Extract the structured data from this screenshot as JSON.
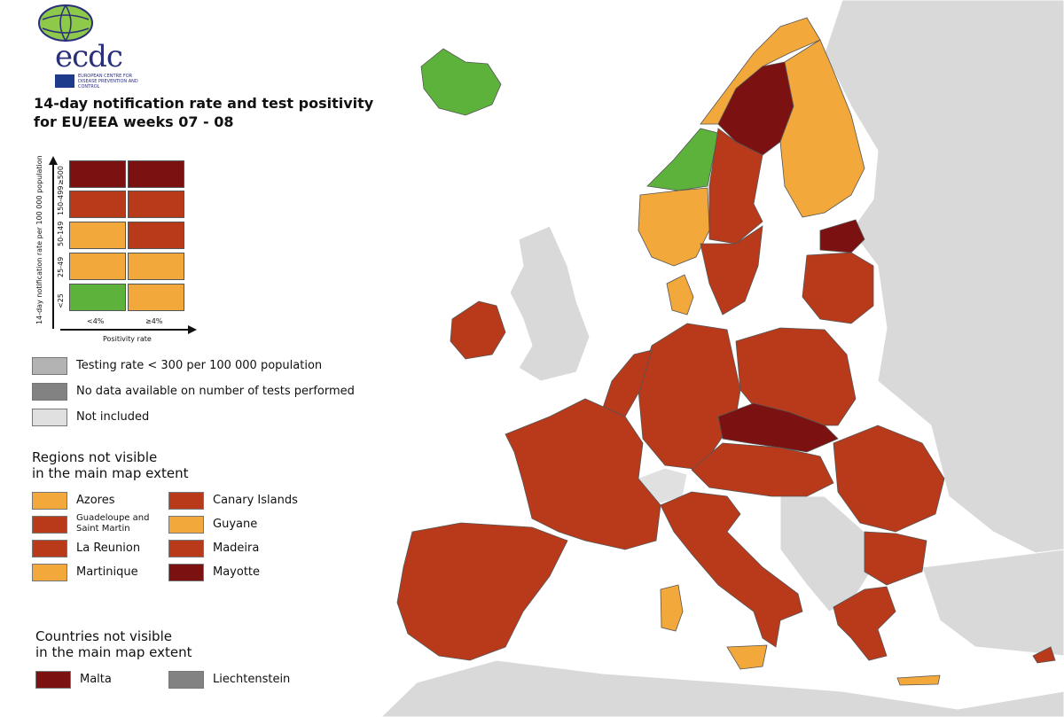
{
  "title": {
    "line1": "14-day notification rate and test positivity",
    "line2": "for EU/EEA weeks 07 - 08"
  },
  "logo": {
    "text": "ecdc",
    "subtitle": "EUROPEAN CENTRE FOR DISEASE PREVENTION AND CONTROL"
  },
  "colors": {
    "darkred": "#7b1111",
    "red": "#b83a1a",
    "orange": "#f2a83b",
    "green": "#5cb23a",
    "testing_low": "#b3b3b3",
    "no_data": "#828282",
    "not_included": "#e0e0e0",
    "sea": "#ffffff",
    "land_other": "#d9d9d9"
  },
  "matrix": {
    "y_title": "14-day notification rate per 100 000 population",
    "x_title": "Positivity rate",
    "rows": [
      "≥500",
      "150-499",
      "50-149",
      "25-49",
      "<25"
    ],
    "cols": [
      "<4%",
      "≥4%"
    ],
    "cells": [
      [
        "darkred",
        "darkred"
      ],
      [
        "red",
        "red"
      ],
      [
        "orange",
        "red"
      ],
      [
        "orange",
        "orange"
      ],
      [
        "green",
        "orange"
      ]
    ]
  },
  "legend_gray": [
    {
      "label": "Testing rate < 300 per 100 000 population",
      "color": "testing_low"
    },
    {
      "label": "No data available on number of tests performed",
      "color": "no_data"
    },
    {
      "label": "Not included",
      "color": "not_included"
    }
  ],
  "regions_title": {
    "line1": "Regions not visible",
    "line2": "in the main map extent"
  },
  "regions": [
    {
      "label": "Azores",
      "color": "orange"
    },
    {
      "label": "Canary Islands",
      "color": "red"
    },
    {
      "label": "Guadeloupe and Saint Martin",
      "color": "red"
    },
    {
      "label": "Guyane",
      "color": "orange"
    },
    {
      "label": "La Reunion",
      "color": "red"
    },
    {
      "label": "Madeira",
      "color": "red"
    },
    {
      "label": "Martinique",
      "color": "orange"
    },
    {
      "label": "Mayotte",
      "color": "darkred"
    }
  ],
  "countries_title": {
    "line1": "Countries not visible",
    "line2": "in the main map extent"
  },
  "countries": [
    {
      "label": "Malta",
      "color": "darkred"
    },
    {
      "label": "Liechtenstein",
      "color": "no_data"
    }
  ],
  "map_regions": [
    {
      "name": "iceland",
      "color": "green"
    },
    {
      "name": "norway-south",
      "color": "orange"
    },
    {
      "name": "norway-mid",
      "color": "green"
    },
    {
      "name": "norway-north",
      "color": "orange"
    },
    {
      "name": "sweden-north",
      "color": "darkred"
    },
    {
      "name": "sweden-central",
      "color": "red"
    },
    {
      "name": "sweden-south",
      "color": "red"
    },
    {
      "name": "finland",
      "color": "orange"
    },
    {
      "name": "estonia",
      "color": "darkred"
    },
    {
      "name": "latvia-lithuania",
      "color": "red"
    },
    {
      "name": "ireland",
      "color": "red"
    },
    {
      "name": "denmark",
      "color": "orange"
    },
    {
      "name": "poland",
      "color": "red"
    },
    {
      "name": "germany",
      "color": "red"
    },
    {
      "name": "benelux",
      "color": "red"
    },
    {
      "name": "france",
      "color": "red"
    },
    {
      "name": "iberia",
      "color": "red"
    },
    {
      "name": "italy",
      "color": "red"
    },
    {
      "name": "czech-slovakia",
      "color": "darkred"
    },
    {
      "name": "austria-hungary",
      "color": "red"
    },
    {
      "name": "romania",
      "color": "red"
    },
    {
      "name": "bulgaria",
      "color": "red"
    },
    {
      "name": "greece",
      "color": "red"
    },
    {
      "name": "sardinia",
      "color": "orange"
    },
    {
      "name": "sicily",
      "color": "orange"
    },
    {
      "name": "crete",
      "color": "orange"
    },
    {
      "name": "cyprus",
      "color": "red"
    }
  ]
}
